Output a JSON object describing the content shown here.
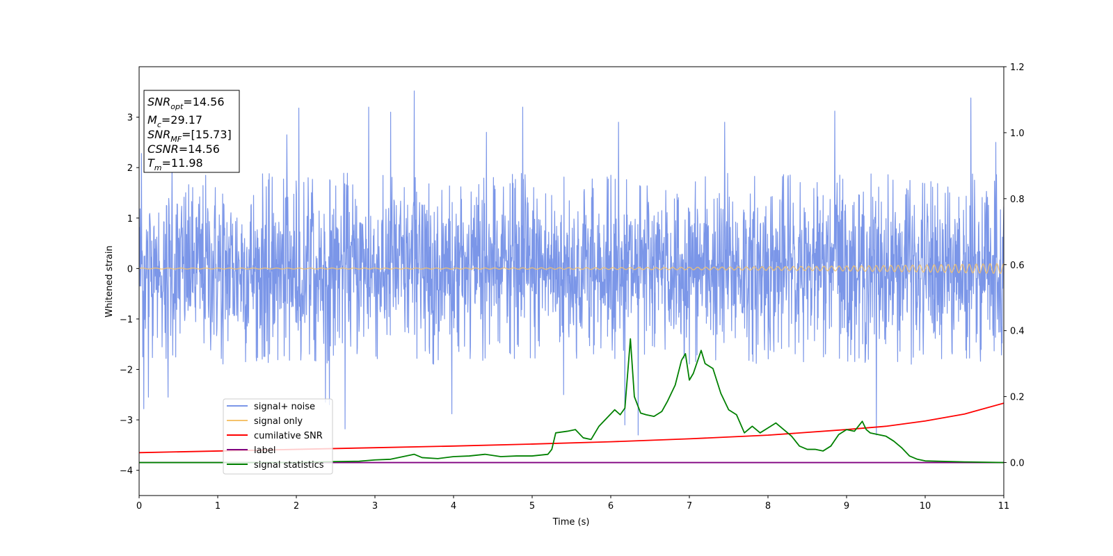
{
  "chart_data": {
    "type": "line",
    "xlabel": "Time (s)",
    "ylabel": "Whitened strain",
    "xlim": [
      0,
      11
    ],
    "ylim_left": [
      -4.5,
      4.0
    ],
    "ylim_right": [
      -0.1,
      1.2
    ],
    "x_ticks": [
      "0",
      "1",
      "2",
      "3",
      "4",
      "5",
      "6",
      "7",
      "8",
      "9",
      "10",
      "11"
    ],
    "y_ticks_left": [
      "−4",
      "−3",
      "−2",
      "−1",
      "0",
      "1",
      "2",
      "3"
    ],
    "y_ticks_right": [
      "0.0",
      "0.2",
      "0.4",
      "0.6",
      "0.8",
      "1.0",
      "1.2"
    ],
    "grid": false,
    "legend_position": "lower-left",
    "colors": {
      "signal_noise": "#7b96e8",
      "signal_only": "#f5c26b",
      "cumulative_snr": "#ff0000",
      "label": "#800080",
      "signal_statistics": "#008000"
    },
    "annotation": {
      "snr_opt": {
        "sym": "SNR",
        "sub": "opt",
        "text": "=14.56"
      },
      "mc": {
        "sym": "M",
        "sub": "c",
        "text": "=29.17"
      },
      "snr_mf": {
        "sym": "SNR",
        "sub": "MF",
        "text": "=[15.73]"
      },
      "csnr": {
        "sym": "CSNR",
        "text": "=14.56"
      },
      "tm": {
        "sym": "T",
        "sub": "m",
        "text": "=11.98"
      }
    },
    "series": [
      {
        "name": "signal+ noise",
        "axis": "left",
        "style": "noise band",
        "typical_range": [
          -1.9,
          1.9
        ],
        "peaks": [
          {
            "x": 0.03,
            "y": 2.28
          },
          {
            "x": 0.06,
            "y": -2.78
          },
          {
            "x": 0.12,
            "y": -2.55
          },
          {
            "x": 0.37,
            "y": -2.55
          },
          {
            "x": 0.42,
            "y": 2.1
          },
          {
            "x": 1.88,
            "y": 2.65
          },
          {
            "x": 2.03,
            "y": 3.18
          },
          {
            "x": 2.37,
            "y": -2.65
          },
          {
            "x": 2.42,
            "y": -2.7
          },
          {
            "x": 2.62,
            "y": -3.18
          },
          {
            "x": 2.92,
            "y": 3.2
          },
          {
            "x": 3.2,
            "y": 3.1
          },
          {
            "x": 3.5,
            "y": 3.52
          },
          {
            "x": 3.98,
            "y": -2.88
          },
          {
            "x": 4.42,
            "y": 2.7
          },
          {
            "x": 4.88,
            "y": 3.2
          },
          {
            "x": 5.4,
            "y": -2.5
          },
          {
            "x": 6.1,
            "y": 2.9
          },
          {
            "x": 6.18,
            "y": -3.1
          },
          {
            "x": 6.35,
            "y": -3.3
          },
          {
            "x": 7.45,
            "y": 2.9
          },
          {
            "x": 8.85,
            "y": 3.12
          },
          {
            "x": 9.38,
            "y": -3.3
          },
          {
            "x": 10.58,
            "y": 3.38
          },
          {
            "x": 10.9,
            "y": 2.5
          }
        ]
      },
      {
        "name": "signal only",
        "axis": "left",
        "style": "chirp oscillation",
        "amplitude_start": 0.01,
        "amplitude_end": 0.1
      },
      {
        "name": "cumilative SNR",
        "axis": "right",
        "x": [
          0,
          1,
          2,
          3,
          4,
          5,
          6,
          7,
          8,
          9,
          9.5,
          10,
          10.5,
          11
        ],
        "y": [
          0.03,
          0.035,
          0.04,
          0.045,
          0.05,
          0.056,
          0.063,
          0.072,
          0.083,
          0.1,
          0.11,
          0.126,
          0.147,
          0.18
        ]
      },
      {
        "name": "label",
        "axis": "right",
        "x": [
          0,
          11
        ],
        "y": [
          0.0,
          0.0
        ]
      },
      {
        "name": "signal statistics",
        "axis": "right",
        "x": [
          0,
          1,
          2,
          2.5,
          2.8,
          3.0,
          3.2,
          3.4,
          3.5,
          3.6,
          3.8,
          4.0,
          4.2,
          4.4,
          4.6,
          4.8,
          5.0,
          5.2,
          5.25,
          5.3,
          5.45,
          5.55,
          5.65,
          5.75,
          5.85,
          5.95,
          6.05,
          6.12,
          6.18,
          6.25,
          6.3,
          6.38,
          6.45,
          6.55,
          6.65,
          6.72,
          6.82,
          6.9,
          6.95,
          7.0,
          7.05,
          7.1,
          7.15,
          7.2,
          7.3,
          7.4,
          7.5,
          7.6,
          7.7,
          7.8,
          7.9,
          8.0,
          8.1,
          8.2,
          8.3,
          8.4,
          8.5,
          8.6,
          8.7,
          8.8,
          8.9,
          9.0,
          9.1,
          9.15,
          9.2,
          9.25,
          9.3,
          9.4,
          9.5,
          9.6,
          9.7,
          9.8,
          9.9,
          10.0,
          10.5,
          11.0
        ],
        "y": [
          0.0,
          0.0,
          0.0,
          0.003,
          0.004,
          0.008,
          0.01,
          0.02,
          0.025,
          0.015,
          0.012,
          0.018,
          0.02,
          0.025,
          0.018,
          0.02,
          0.02,
          0.025,
          0.04,
          0.09,
          0.095,
          0.1,
          0.075,
          0.07,
          0.11,
          0.135,
          0.16,
          0.145,
          0.165,
          0.375,
          0.2,
          0.15,
          0.145,
          0.14,
          0.155,
          0.185,
          0.235,
          0.31,
          0.33,
          0.25,
          0.27,
          0.305,
          0.34,
          0.3,
          0.285,
          0.21,
          0.16,
          0.145,
          0.09,
          0.11,
          0.09,
          0.105,
          0.12,
          0.1,
          0.08,
          0.05,
          0.04,
          0.04,
          0.035,
          0.05,
          0.085,
          0.1,
          0.095,
          0.11,
          0.125,
          0.1,
          0.09,
          0.085,
          0.08,
          0.065,
          0.045,
          0.02,
          0.01,
          0.005,
          0.002,
          0.0
        ]
      }
    ]
  }
}
